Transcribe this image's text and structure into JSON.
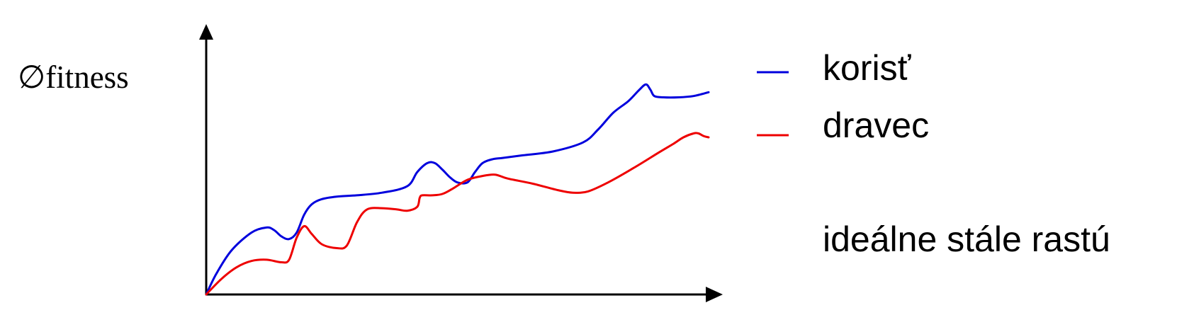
{
  "chart_data": {
    "type": "line",
    "title": "",
    "xlabel": "",
    "ylabel": "∅fitness",
    "xlim": [
      0,
      100
    ],
    "ylim": [
      0,
      100
    ],
    "grid": false,
    "legend_placement": "right",
    "series": [
      {
        "name": "korisť",
        "color": "#0000dd",
        "x": [
          0,
          2,
          5,
          9,
          12,
          13.5,
          15,
          16.5,
          18,
          19.5,
          21,
          23,
          26,
          30,
          35,
          40,
          42,
          44,
          45.5,
          47,
          48.5,
          50,
          52,
          53.5,
          55,
          57,
          59,
          63,
          69,
          75,
          78,
          81,
          84,
          86,
          87.5,
          88.4,
          89.2,
          91,
          94,
          97,
          100
        ],
        "y": [
          0,
          8,
          17,
          24,
          26,
          25,
          22.5,
          21.5,
          24,
          31,
          35,
          37,
          38,
          38.5,
          39.5,
          42,
          47.5,
          51,
          51,
          48.5,
          45.5,
          43.5,
          43.5,
          47.5,
          51,
          52.5,
          53,
          54,
          55.5,
          59,
          64,
          70.5,
          75,
          79,
          81.5,
          79.5,
          77,
          76.5,
          76.5,
          77,
          78.5
        ]
      },
      {
        "name": "dravec",
        "color": "#ee0000",
        "x": [
          0,
          3,
          6,
          9,
          12,
          15,
          16.5,
          18,
          19.5,
          21,
          23,
          26,
          28,
          30,
          32,
          35,
          38,
          40,
          42,
          42.5,
          43,
          45,
          47,
          49,
          52,
          55,
          57.5,
          60,
          65,
          70,
          73,
          76,
          80,
          85,
          90,
          93,
          95,
          97,
          98,
          99,
          100
        ],
        "y": [
          0,
          6,
          10.5,
          13,
          13.5,
          12.5,
          13.5,
          22,
          26.5,
          23.5,
          19.5,
          18,
          19,
          28,
          33,
          33.5,
          33,
          32.5,
          34,
          37.5,
          38.5,
          38.5,
          39,
          41,
          44.5,
          46,
          46.5,
          45,
          43,
          40.5,
          39.5,
          40,
          43.5,
          49,
          55,
          58.5,
          61,
          62.5,
          62.5,
          61.5,
          61
        ]
      }
    ],
    "annotations": [
      "ideálne stále rastú"
    ]
  }
}
